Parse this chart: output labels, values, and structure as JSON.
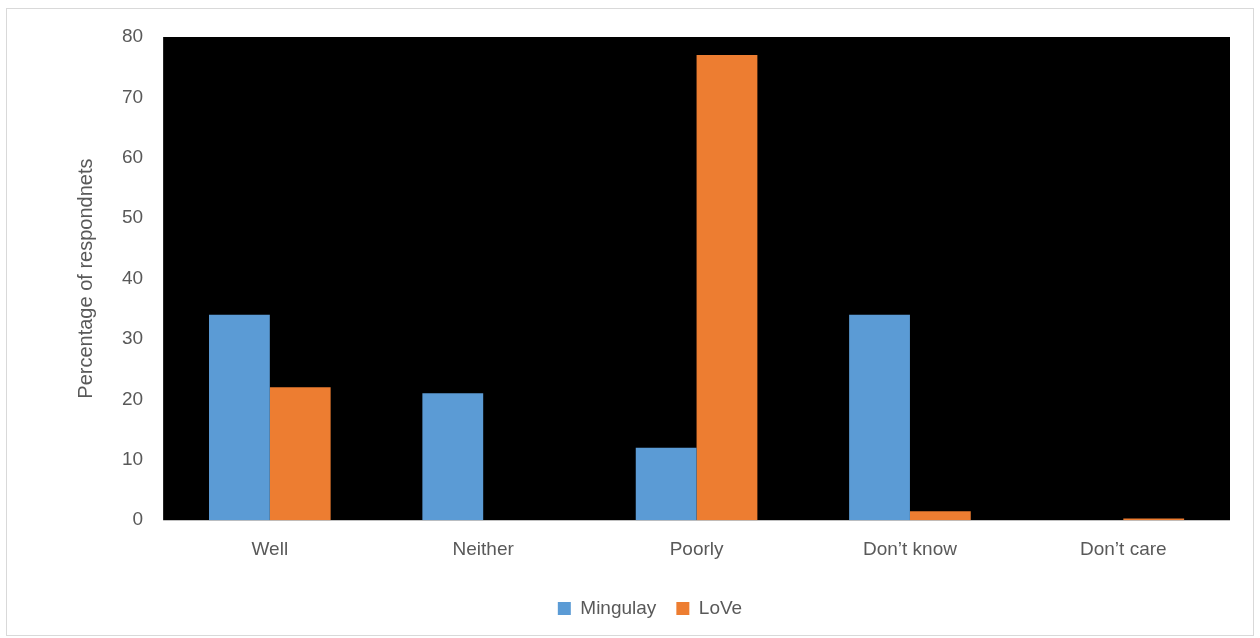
{
  "chart_data": {
    "type": "bar",
    "ylabel": "Percentage of respondnets",
    "categories": [
      "Well",
      "Neither",
      "Poorly",
      "Don’t know",
      "Don’t care"
    ],
    "series": [
      {
        "name": "Mingulay",
        "color": "#5b9bd5",
        "values": [
          34,
          21,
          12,
          34,
          0
        ]
      },
      {
        "name": "LoVe",
        "color": "#ed7d31",
        "values": [
          22,
          0,
          77,
          1.5,
          0.3
        ]
      }
    ],
    "ylim": [
      0,
      80
    ],
    "yticks": [
      0,
      10,
      20,
      30,
      40,
      50,
      60,
      70,
      80
    ],
    "grid": false,
    "legend": "bottom"
  }
}
